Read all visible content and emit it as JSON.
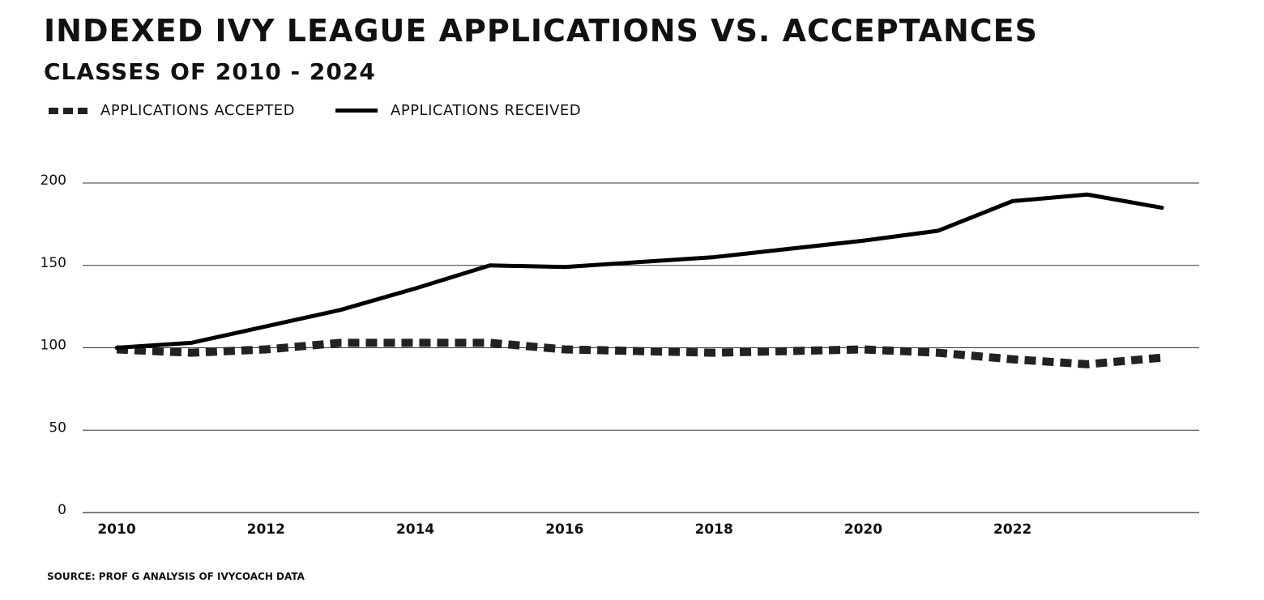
{
  "chart_data": {
    "type": "line",
    "title": "INDEXED IVY LEAGUE APPLICATIONS VS. ACCEPTANCES",
    "subtitle": "CLASSES OF 2010 - 2024",
    "xlabel": "",
    "ylabel": "",
    "x": [
      2010,
      2011,
      2012,
      2013,
      2014,
      2015,
      2016,
      2017,
      2018,
      2019,
      2020,
      2021,
      2022,
      2023,
      2024
    ],
    "x_ticks": [
      2010,
      2012,
      2014,
      2016,
      2018,
      2020,
      2022
    ],
    "y_ticks": [
      0,
      50,
      100,
      150,
      200
    ],
    "ylim": [
      0,
      200
    ],
    "xlim": [
      2010,
      2024
    ],
    "grid": "horizontal",
    "legend_position": "top-left",
    "series": [
      {
        "name": "APPLICATIONS ACCEPTED",
        "style": "dotted",
        "color": "#222222",
        "values": [
          99,
          97,
          99,
          103,
          103,
          103,
          99,
          98,
          97,
          98,
          99,
          97,
          93,
          90,
          94
        ]
      },
      {
        "name": "APPLICATIONS RECEIVED",
        "style": "solid",
        "color": "#000000",
        "values": [
          100,
          103,
          113,
          123,
          136,
          150,
          149,
          152,
          155,
          160,
          165,
          171,
          189,
          193,
          185
        ]
      }
    ],
    "source": "SOURCE: PROF G ANALYSIS OF IVYCOACH DATA"
  }
}
